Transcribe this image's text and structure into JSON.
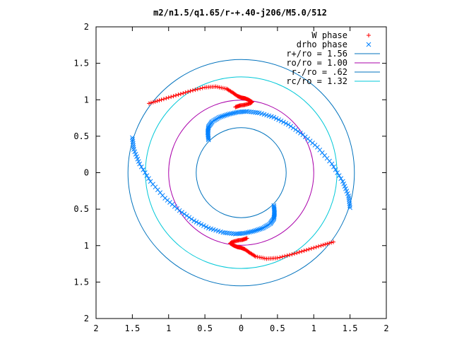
{
  "chart_data": {
    "type": "scatter",
    "title": "m2/n1.5/q1.65/r-+.40-j206/M5.0/512",
    "xlabel": "",
    "ylabel": "",
    "xlim": [
      -2,
      2
    ],
    "ylim": [
      -2,
      2
    ],
    "x_tick_labels": [
      "2",
      "1.5",
      "1",
      "0.5",
      "0",
      "0.5",
      "1",
      "1.5",
      "2"
    ],
    "y_tick_labels": [
      "2",
      "1.5",
      "1",
      "0.5",
      "0",
      "0.5",
      "1",
      "1.5",
      "2"
    ],
    "tick_values": [
      -2,
      -1.5,
      -1,
      -0.5,
      0,
      0.5,
      1,
      1.5,
      2
    ],
    "grid": false,
    "legend_position": "top-right",
    "series": [
      {
        "name": "W phase",
        "kind": "points",
        "marker": "plus",
        "color": "#ff0000",
        "x": [
          -1.27,
          -1.1,
          -0.9,
          -0.7,
          -0.5,
          -0.35,
          -0.2,
          -0.12,
          -0.05,
          0.0,
          0.05,
          0.1,
          0.15,
          0.12,
          0.05,
          -0.02,
          -0.08,
          1.27,
          1.1,
          0.9,
          0.7,
          0.5,
          0.35,
          0.2,
          0.12,
          0.05,
          0.0,
          -0.05,
          -0.1,
          -0.15,
          -0.12,
          -0.05,
          0.02,
          0.08
        ],
        "y": [
          0.95,
          1.0,
          1.06,
          1.12,
          1.17,
          1.18,
          1.15,
          1.1,
          1.05,
          1.03,
          1.02,
          1.0,
          0.97,
          0.95,
          0.93,
          0.92,
          0.9,
          -0.95,
          -1.0,
          -1.06,
          -1.12,
          -1.17,
          -1.18,
          -1.15,
          -1.1,
          -1.05,
          -1.03,
          -1.02,
          -1.0,
          -0.97,
          -0.95,
          -0.93,
          -0.92,
          -0.9
        ]
      },
      {
        "name": "drho phase",
        "kind": "points",
        "marker": "x",
        "color": "#0080ff",
        "x": [
          -0.45,
          -0.46,
          -0.45,
          -0.4,
          -0.3,
          -0.18,
          -0.05,
          0.08,
          0.25,
          0.45,
          0.65,
          0.85,
          1.05,
          1.25,
          1.4,
          1.48,
          1.5,
          0.45,
          0.46,
          0.45,
          0.4,
          0.3,
          0.18,
          0.05,
          -0.08,
          -0.25,
          -0.45,
          -0.65,
          -0.85,
          -1.05,
          -1.25,
          -1.4,
          -1.48,
          -1.5
        ],
        "y": [
          0.45,
          0.55,
          0.63,
          0.7,
          0.76,
          0.8,
          0.83,
          0.84,
          0.82,
          0.76,
          0.66,
          0.52,
          0.35,
          0.12,
          -0.12,
          -0.32,
          -0.48,
          -0.45,
          -0.55,
          -0.63,
          -0.7,
          -0.76,
          -0.8,
          -0.83,
          -0.84,
          -0.82,
          -0.76,
          -0.66,
          -0.52,
          -0.35,
          -0.12,
          0.12,
          0.32,
          0.48
        ]
      },
      {
        "name": "r+/ro = 1.56",
        "kind": "circle",
        "radius": 1.56,
        "color": "#0072bd"
      },
      {
        "name": "ro/ro = 1.00",
        "kind": "circle",
        "radius": 1.0,
        "color": "#aa00aa"
      },
      {
        "name": "r-/ro = .62",
        "kind": "circle",
        "radius": 0.62,
        "color": "#0072bd"
      },
      {
        "name": "rc/ro = 1.32",
        "kind": "circle",
        "radius": 1.32,
        "color": "#00c8d8"
      }
    ]
  }
}
